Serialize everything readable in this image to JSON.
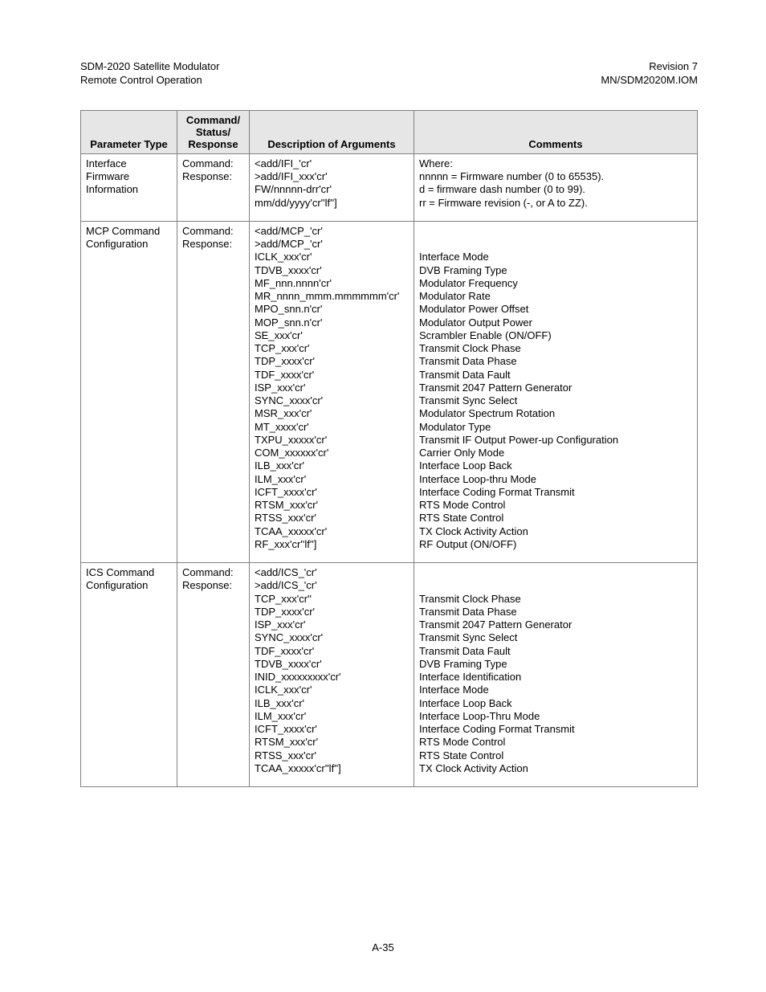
{
  "header": {
    "left_line1": "SDM-2020 Satellite Modulator",
    "left_line2": "Remote Control Operation",
    "right_line1": "Revision 7",
    "right_line2": "MN/SDM2020M.IOM"
  },
  "table": {
    "header_bg": "#e6e6e6",
    "border_color": "#808080",
    "columns": [
      "Parameter Type",
      "Command/ Status/ Response",
      "Description of Arguments",
      "Comments"
    ],
    "rows": [
      {
        "param": "Interface Firmware Information",
        "cmd": "Command:\nResponse:",
        "desc": "<add/IFI_'cr'\n>add/IFI_xxx'cr'\nFW/nnnnn-drr'cr'\nmm/dd/yyyy'cr''lf'']",
        "comments": "Where:\nnnnnn = Firmware number (0 to 65535).\nd = firmware dash number (0 to 99).\nrr = Firmware revision (-, or A to ZZ)."
      },
      {
        "param": "MCP Command Configuration",
        "cmd": "Command:\nResponse:",
        "desc": "<add/MCP_'cr'\n>add/MCP_'cr'\nICLK_xxx'cr'\nTDVB_xxxx'cr'\nMF_nnn.nnnn'cr'\nMR_nnnn_mmm.mmmmmm'cr'\nMPO_snn.n'cr'\nMOP_snn.n'cr'\nSE_xxx'cr'\nTCP_xxx'cr'\nTDP_xxxx'cr'\nTDF_xxxx'cr'\nISP_xxx'cr'\nSYNC_xxxx'cr'\nMSR_xxx'cr'\nMT_xxxx'cr'\nTXPU_xxxxx'cr'\nCOM_xxxxxx'cr'\nILB_xxx'cr'\nILM_xxx'cr'\nICFT_xxxx'cr'\nRTSM_xxx'cr'\nRTSS_xxx'cr'\nTCAA_xxxxx'cr'\nRF_xxx'cr''lf'']",
        "comments": "\n\nInterface Mode\nDVB Framing Type\nModulator Frequency\nModulator Rate\nModulator Power Offset\nModulator Output Power\nScrambler Enable (ON/OFF)\nTransmit Clock Phase\nTransmit Data Phase\nTransmit Data Fault\nTransmit 2047 Pattern Generator\nTransmit Sync Select\nModulator Spectrum Rotation\nModulator Type\nTransmit IF Output Power-up Configuration\nCarrier Only Mode\nInterface Loop Back\nInterface Loop-thru Mode\nInterface Coding Format Transmit\nRTS Mode Control\nRTS State Control\nTX Clock Activity Action\nRF Output (ON/OFF)"
      },
      {
        "param": "ICS Command Configuration",
        "cmd": "Command:\nResponse:",
        "desc": "<add/ICS_'cr'\n>add/ICS_'cr'\nTCP_xxx'cr''\nTDP_xxxx'cr'\nISP_xxx'cr'\nSYNC_xxxx'cr'\nTDF_xxxx'cr'\nTDVB_xxxx'cr'\nINID_xxxxxxxxx'cr'\nICLK_xxx'cr'\nILB_xxx'cr'\nILM_xxx'cr'\nICFT_xxxx'cr'\nRTSM_xxx'cr'\nRTSS_xxx'cr'\nTCAA_xxxxx'cr''lf'']",
        "comments": "\n\nTransmit Clock Phase\nTransmit Data Phase\nTransmit 2047 Pattern Generator\nTransmit Sync Select\nTransmit Data Fault\nDVB Framing Type\nInterface Identification\nInterface Mode\nInterface Loop Back\nInterface Loop-Thru Mode\nInterface Coding Format Transmit\nRTS Mode Control\nRTS State Control\nTX Clock Activity Action"
      }
    ]
  },
  "footer": {
    "page_number": "A-35"
  }
}
